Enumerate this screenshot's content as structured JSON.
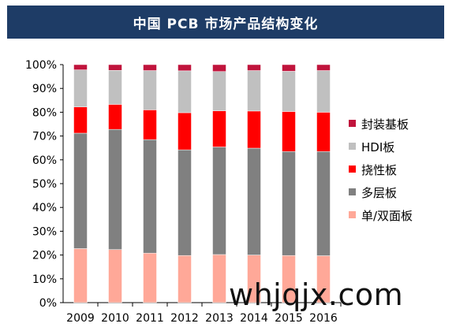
{
  "title": "中国 PCB 市场产品结构变化",
  "watermark": "whjqjx.com",
  "chart_data": {
    "type": "bar",
    "stacked": true,
    "title": "中国 PCB 市场产品结构变化",
    "xlabel": "",
    "ylabel": "",
    "ylim": [
      0,
      100
    ],
    "y_ticks": [
      "0%",
      "10%",
      "20%",
      "30%",
      "40%",
      "50%",
      "60%",
      "70%",
      "80%",
      "90%",
      "100%"
    ],
    "grid": false,
    "legend_position": "right",
    "categories": [
      "2009",
      "2010",
      "2011",
      "2012",
      "2013",
      "2014",
      "2015",
      "2016"
    ],
    "series": [
      {
        "name": "单/双面板",
        "color": "#ffa898",
        "values": [
          22.7,
          22.3,
          20.8,
          19.8,
          20.2,
          20.0,
          19.8,
          19.7
        ]
      },
      {
        "name": "多层板",
        "color": "#808080",
        "values": [
          48.5,
          50.5,
          47.7,
          44.4,
          45.2,
          44.9,
          43.7,
          43.8
        ]
      },
      {
        "name": "挠性板",
        "color": "#ff0000",
        "values": [
          11.0,
          10.5,
          12.5,
          15.6,
          15.2,
          15.6,
          16.8,
          16.5
        ]
      },
      {
        "name": "HDI板",
        "color": "#c0c0c0",
        "values": [
          15.6,
          14.3,
          16.5,
          17.6,
          16.5,
          17.0,
          16.9,
          17.5
        ]
      },
      {
        "name": "封装基板",
        "color": "#c0143c",
        "values": [
          2.2,
          2.4,
          2.5,
          2.6,
          2.9,
          2.5,
          2.8,
          2.5
        ]
      }
    ]
  }
}
